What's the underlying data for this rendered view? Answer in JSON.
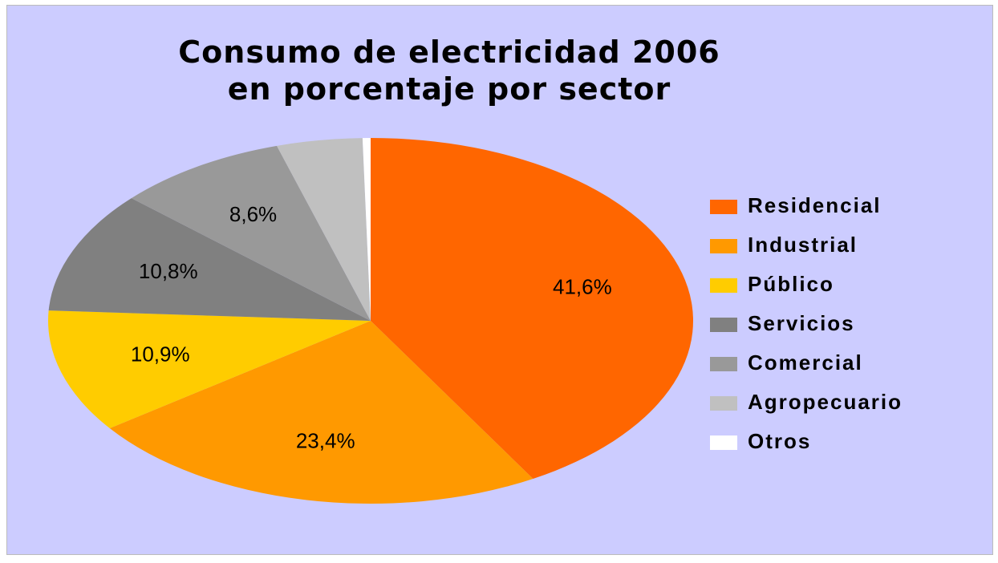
{
  "chart_data": {
    "type": "pie",
    "title": "Consumo de electricidad 2006 en porcentaje por sector",
    "categories": [
      "Residencial",
      "Industrial",
      "Público",
      "Servicios",
      "Comercial",
      "Agropecuario",
      "Otros"
    ],
    "values": [
      41.6,
      23.4,
      10.9,
      10.8,
      8.6,
      4.3,
      0.4
    ],
    "value_labels": [
      "41,6%",
      "23,4%",
      "10,9%",
      "10,8%",
      "8,6%",
      null,
      null
    ],
    "colors": [
      "#ff6600",
      "#ff9900",
      "#ffcc00",
      "#808080",
      "#999999",
      "#c0c0c0",
      "#ffffff"
    ],
    "legend": "right"
  }
}
